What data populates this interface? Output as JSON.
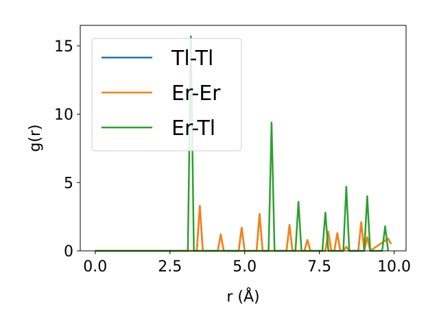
{
  "chart_data": {
    "type": "line",
    "xlabel": "r (Å)",
    "ylabel": "g(r)",
    "xlim": [
      -0.5,
      10.4
    ],
    "ylim": [
      0,
      16.5
    ],
    "x_ticks": [
      0.0,
      2.5,
      5.0,
      7.5,
      10.0
    ],
    "x_tick_labels": [
      "0.0",
      "2.5",
      "5.0",
      "7.5",
      "10.0"
    ],
    "y_ticks": [
      0,
      5,
      10,
      15
    ],
    "y_tick_labels": [
      "0",
      "5",
      "10",
      "15"
    ],
    "legend_placement": "upper-left",
    "grid": false,
    "series": [
      {
        "name": "Tl-Tl",
        "color": "#1f77b4",
        "x": [
          0.0,
          3.4,
          3.5,
          3.6,
          4.1,
          4.2,
          4.3,
          4.8,
          4.9,
          5.0,
          5.4,
          5.5,
          5.6,
          6.4,
          6.5,
          6.6,
          7.0,
          7.1,
          7.2,
          7.7,
          7.8,
          7.9,
          8.0,
          8.1,
          8.2,
          8.3,
          8.4,
          8.5,
          8.8,
          8.9,
          9.0,
          9.1,
          9.2,
          9.8,
          9.9
        ],
        "y": [
          0,
          0,
          3.3,
          0,
          0,
          1.2,
          0,
          0,
          1.7,
          0,
          0,
          2.7,
          0,
          0,
          1.9,
          0,
          0,
          0.8,
          0,
          0,
          1.4,
          0,
          0,
          1.3,
          0,
          0,
          0.3,
          0,
          0,
          2.1,
          0,
          1.0,
          0,
          0.9,
          0.5
        ]
      },
      {
        "name": "Er-Er",
        "color": "#ff7f0e",
        "x": [
          0.0,
          3.4,
          3.5,
          3.6,
          4.1,
          4.2,
          4.3,
          4.8,
          4.9,
          5.0,
          5.4,
          5.5,
          5.6,
          6.4,
          6.5,
          6.6,
          7.0,
          7.1,
          7.2,
          7.7,
          7.8,
          7.9,
          8.0,
          8.1,
          8.2,
          8.3,
          8.4,
          8.5,
          8.8,
          8.9,
          9.0,
          9.1,
          9.2,
          9.8,
          9.9
        ],
        "y": [
          0,
          0,
          3.3,
          0,
          0,
          1.2,
          0,
          0,
          1.7,
          0,
          0,
          2.7,
          0,
          0,
          1.9,
          0,
          0,
          0.8,
          0,
          0,
          1.4,
          0,
          0,
          1.3,
          0,
          0,
          0.3,
          0,
          0,
          2.1,
          0,
          1.0,
          0,
          0.9,
          0.5
        ]
      },
      {
        "name": "Er-Tl",
        "color": "#2ca02c",
        "x": [
          0.0,
          3.1,
          3.2,
          3.3,
          5.8,
          5.9,
          6.0,
          6.7,
          6.8,
          6.9,
          7.6,
          7.7,
          7.8,
          8.3,
          8.4,
          8.5,
          9.0,
          9.1,
          9.2,
          9.6,
          9.7,
          9.8
        ],
        "y": [
          0,
          0,
          15.7,
          0,
          0,
          9.4,
          0,
          0,
          3.6,
          0,
          0,
          2.8,
          0,
          0,
          4.7,
          0,
          0,
          4.0,
          0,
          0,
          1.8,
          0
        ]
      }
    ]
  }
}
